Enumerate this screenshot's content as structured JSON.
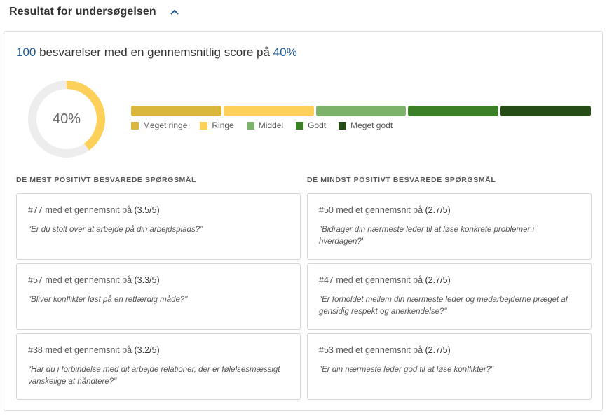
{
  "header": {
    "title": "Resultat for undersøgelsen",
    "collapse_icon": "chevron-up-icon"
  },
  "summary": {
    "count": "100",
    "middle": " besvarelser med en gennemsnitlig score på ",
    "score": "40%"
  },
  "donut": {
    "label": "40%",
    "fraction": 0.4,
    "fill_color": "#fdd05a",
    "track_color": "#ededed"
  },
  "scale": [
    {
      "label": "Meget ringe",
      "color": "#d9b73a"
    },
    {
      "label": "Ringe",
      "color": "#fdd05a"
    },
    {
      "label": "Middel",
      "color": "#7db26b"
    },
    {
      "label": "Godt",
      "color": "#3b7f26"
    },
    {
      "label": "Meget godt",
      "color": "#254c17"
    }
  ],
  "most_positive": {
    "title": "DE MEST POSITIVT BESVAREDE SPØRGSMÅL",
    "items": [
      {
        "prefix": "#77 med et gennemsnit på ",
        "avg": "(3.5/5)",
        "text": "\"Er du stolt over at arbejde på din arbejdsplads?\""
      },
      {
        "prefix": "#57 med et gennemsnit på ",
        "avg": "(3.3/5)",
        "text": "\"Bliver konflikter løst på en retfærdig måde?\""
      },
      {
        "prefix": "#38 med et gennemsnit på ",
        "avg": "(3.2/5)",
        "text": "\"Har du i forbindelse med dit arbejde relationer, der er følelsesmæssigt vanskelige at håndtere?\""
      }
    ]
  },
  "least_positive": {
    "title": "DE MINDST POSITIVT BESVAREDE SPØRGSMÅL",
    "items": [
      {
        "prefix": "#50 med et gennemsnit på ",
        "avg": "(2.7/5)",
        "text": "\"Bidrager din nærmeste leder til at løse konkrete problemer i hverdagen?\""
      },
      {
        "prefix": "#47 med et gennemsnit på ",
        "avg": "(2.7/5)",
        "text": "\"Er forholdet mellem din nærmeste leder og medarbejderne præget af gensidig respekt og anerkendelse?\""
      },
      {
        "prefix": "#53 med et gennemsnit på ",
        "avg": "(2.7/5)",
        "text": "\"Er din nærmeste leder god til at løse konflikter?\""
      }
    ]
  }
}
